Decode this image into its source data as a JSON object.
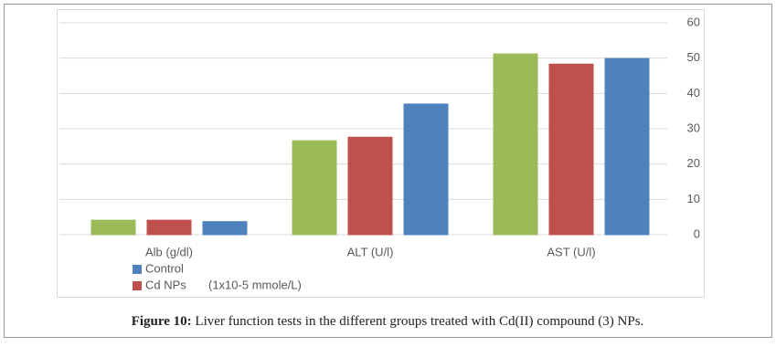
{
  "chart_data": {
    "type": "bar",
    "categories": [
      "Alb (g/dl)",
      "ALT (U/l)",
      "AST (U/l)"
    ],
    "series": [
      {
        "color": "#9bbb59",
        "values": [
          4.1,
          26.6,
          51.2
        ]
      },
      {
        "name": "Cd NPs",
        "color": "#c0504d",
        "values": [
          4.1,
          27.6,
          48.3
        ]
      },
      {
        "name": "Control",
        "color": "#4f81bd",
        "values": [
          3.7,
          37,
          49.9
        ]
      }
    ],
    "legend_order": [
      2,
      1
    ],
    "legend_note": "(1x10-5 mmole/L)",
    "ylim": [
      0,
      60
    ],
    "yticks": [
      0,
      10,
      20,
      30,
      40,
      50,
      60
    ],
    "grid": true,
    "y_axis_side": "right"
  },
  "caption": {
    "label": "Figure 10:",
    "text": " Liver function tests in the different groups treated with Cd(II) compound (3) NPs."
  }
}
